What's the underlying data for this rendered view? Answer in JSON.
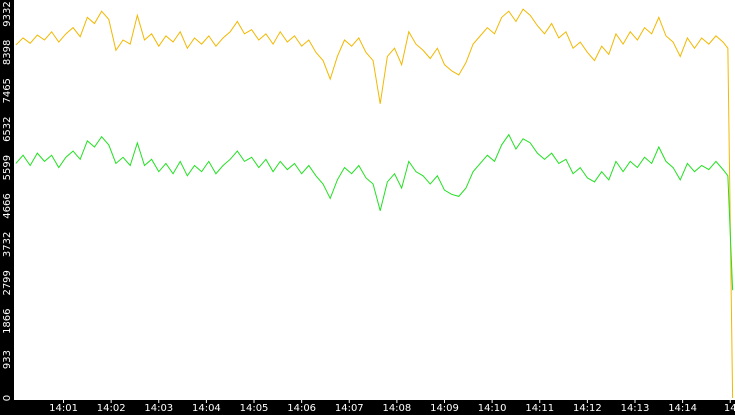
{
  "chart_data": {
    "type": "line",
    "x": [
      0,
      0.15,
      0.3,
      0.45,
      0.6,
      0.75,
      0.9,
      1.05,
      1.2,
      1.35,
      1.5,
      1.65,
      1.8,
      1.95,
      2.1,
      2.25,
      2.4,
      2.55,
      2.7,
      2.85,
      3,
      3.15,
      3.3,
      3.45,
      3.6,
      3.75,
      3.9,
      4.05,
      4.2,
      4.35,
      4.5,
      4.65,
      4.8,
      4.95,
      5.1,
      5.25,
      5.4,
      5.55,
      5.7,
      5.85,
      6,
      6.15,
      6.3,
      6.45,
      6.6,
      6.75,
      6.9,
      7.05,
      7.2,
      7.35,
      7.5,
      7.65,
      7.8,
      7.95,
      8.1,
      8.25,
      8.4,
      8.55,
      8.7,
      8.85,
      9,
      9.15,
      9.3,
      9.45,
      9.6,
      9.75,
      9.9,
      10.05,
      10.2,
      10.35,
      10.5,
      10.65,
      10.8,
      10.95,
      11.1,
      11.25,
      11.4,
      11.55,
      11.7,
      11.85,
      12,
      12.15,
      12.3,
      12.45,
      12.6,
      12.75,
      12.9,
      13.05,
      13.2,
      13.35,
      13.5,
      13.65,
      13.8,
      13.95,
      14.1,
      14.25,
      14.4,
      14.55,
      14.7,
      14.85,
      14.95,
      15.05
    ],
    "series": [
      {
        "color": "#f2b800",
        "values": [
          8580,
          8750,
          8620,
          8820,
          8700,
          8900,
          8650,
          8850,
          9000,
          8780,
          9250,
          9100,
          9400,
          9200,
          8450,
          8700,
          8600,
          9300,
          8700,
          8850,
          8550,
          8800,
          8650,
          8900,
          8500,
          8750,
          8600,
          8800,
          8550,
          8750,
          8900,
          9150,
          8850,
          8950,
          8700,
          8850,
          8600,
          8900,
          8650,
          8800,
          8550,
          8700,
          8400,
          8200,
          7750,
          8300,
          8700,
          8550,
          8750,
          8400,
          8200,
          7150,
          8300,
          8500,
          8100,
          8900,
          8600,
          8450,
          8250,
          8500,
          8100,
          7950,
          7850,
          8150,
          8600,
          8800,
          9000,
          8850,
          9250,
          9400,
          9150,
          9450,
          9300,
          9050,
          8850,
          9100,
          8750,
          8900,
          8500,
          8650,
          8400,
          8200,
          8550,
          8350,
          8850,
          8600,
          8900,
          8700,
          9000,
          8850,
          9250,
          8800,
          8650,
          8300,
          8750,
          8500,
          8750,
          8600,
          8800,
          8650,
          8500,
          0
        ]
      },
      {
        "color": "#22e022",
        "values": [
          5700,
          5900,
          5650,
          5950,
          5750,
          5900,
          5600,
          5850,
          6000,
          5800,
          6250,
          6100,
          6350,
          6150,
          5700,
          5850,
          5650,
          6200,
          5650,
          5800,
          5500,
          5700,
          5450,
          5750,
          5400,
          5650,
          5500,
          5750,
          5450,
          5650,
          5800,
          6000,
          5750,
          5850,
          5600,
          5800,
          5500,
          5750,
          5550,
          5700,
          5450,
          5650,
          5400,
          5200,
          4850,
          5300,
          5600,
          5450,
          5650,
          5350,
          5200,
          4550,
          5250,
          5450,
          5100,
          5750,
          5500,
          5400,
          5200,
          5400,
          5050,
          4950,
          4900,
          5100,
          5500,
          5700,
          5900,
          5750,
          6150,
          6400,
          6050,
          6300,
          6200,
          5950,
          5800,
          5950,
          5700,
          5800,
          5450,
          5600,
          5350,
          5250,
          5500,
          5300,
          5750,
          5500,
          5750,
          5600,
          5850,
          5700,
          6100,
          5750,
          5600,
          5300,
          5700,
          5500,
          5650,
          5550,
          5750,
          5550,
          5400,
          2620
        ]
      }
    ],
    "xlim": [
      -0.04,
      15.1
    ],
    "xticks": [
      {
        "value": 1,
        "label": "14:01"
      },
      {
        "value": 2,
        "label": "14:02"
      },
      {
        "value": 3,
        "label": "14:03"
      },
      {
        "value": 4,
        "label": "14:04"
      },
      {
        "value": 5,
        "label": "14:05"
      },
      {
        "value": 6,
        "label": "14:06"
      },
      {
        "value": 7,
        "label": "14:07"
      },
      {
        "value": 8,
        "label": "14:08"
      },
      {
        "value": 9,
        "label": "14:09"
      },
      {
        "value": 10,
        "label": "14:10"
      },
      {
        "value": 11,
        "label": "14:11"
      },
      {
        "value": 12,
        "label": "14:12"
      },
      {
        "value": 13,
        "label": "14:13"
      },
      {
        "value": 14,
        "label": "14:14"
      },
      {
        "value": 15,
        "label": "14"
      }
    ],
    "ylim": [
      0,
      9672
    ],
    "yticks": [
      0,
      933,
      1866,
      2799,
      3732,
      4666,
      5599,
      6532,
      7465,
      8398,
      9332
    ]
  }
}
